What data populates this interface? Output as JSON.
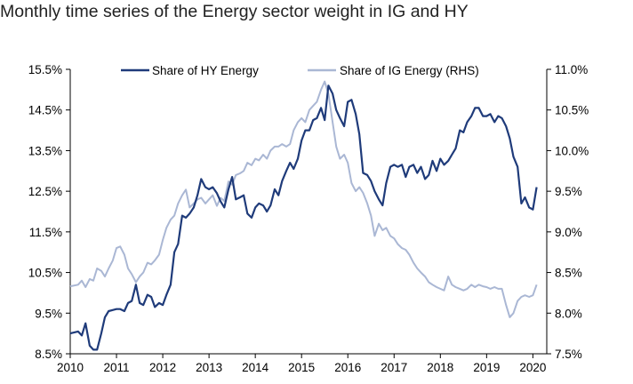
{
  "title": "Monthly time series of the Energy sector weight in IG and HY",
  "chart_data": {
    "type": "line",
    "title": "Monthly time series of the Energy sector weight in IG and HY",
    "x_ticks": [
      "2010",
      "2011",
      "2012",
      "2013",
      "2014",
      "2015",
      "2016",
      "2017",
      "2018",
      "2019",
      "2020"
    ],
    "xlim": [
      2010.0,
      2020.3
    ],
    "y_left": {
      "lim": [
        8.5,
        15.5
      ],
      "ticks": [
        "8.5%",
        "9.5%",
        "10.5%",
        "11.5%",
        "12.5%",
        "13.5%",
        "14.5%",
        "15.5%"
      ]
    },
    "y_right": {
      "lim": [
        7.5,
        11.0
      ],
      "ticks": [
        "7.5%",
        "8.0%",
        "8.5%",
        "9.0%",
        "9.5%",
        "10.0%",
        "10.5%",
        "11.0%"
      ]
    },
    "legend_position": "top",
    "grid": false,
    "series": [
      {
        "name": "Share of HY Energy",
        "axis": "left",
        "color": "#1f3b7a",
        "points": [
          [
            2010.0,
            9.0
          ],
          [
            2010.17,
            9.05
          ],
          [
            2010.25,
            8.95
          ],
          [
            2010.33,
            9.25
          ],
          [
            2010.42,
            8.7
          ],
          [
            2010.5,
            8.6
          ],
          [
            2010.58,
            8.6
          ],
          [
            2010.67,
            9.0
          ],
          [
            2010.75,
            9.4
          ],
          [
            2010.83,
            9.55
          ],
          [
            2011.0,
            9.6
          ],
          [
            2011.08,
            9.6
          ],
          [
            2011.17,
            9.55
          ],
          [
            2011.25,
            9.75
          ],
          [
            2011.33,
            9.8
          ],
          [
            2011.42,
            10.2
          ],
          [
            2011.5,
            9.75
          ],
          [
            2011.58,
            9.7
          ],
          [
            2011.67,
            9.95
          ],
          [
            2011.75,
            9.9
          ],
          [
            2011.83,
            9.65
          ],
          [
            2011.92,
            9.75
          ],
          [
            2012.0,
            9.7
          ],
          [
            2012.08,
            9.95
          ],
          [
            2012.17,
            10.2
          ],
          [
            2012.25,
            11.0
          ],
          [
            2012.33,
            11.2
          ],
          [
            2012.42,
            11.9
          ],
          [
            2012.5,
            11.85
          ],
          [
            2012.58,
            11.95
          ],
          [
            2012.67,
            12.1
          ],
          [
            2012.75,
            12.4
          ],
          [
            2012.83,
            12.8
          ],
          [
            2012.92,
            12.6
          ],
          [
            2013.0,
            12.55
          ],
          [
            2013.08,
            12.6
          ],
          [
            2013.17,
            12.45
          ],
          [
            2013.25,
            12.25
          ],
          [
            2013.33,
            12.1
          ],
          [
            2013.42,
            12.55
          ],
          [
            2013.5,
            12.85
          ],
          [
            2013.58,
            12.3
          ],
          [
            2013.67,
            12.35
          ],
          [
            2013.75,
            12.4
          ],
          [
            2013.83,
            11.95
          ],
          [
            2013.92,
            11.85
          ],
          [
            2014.0,
            12.1
          ],
          [
            2014.08,
            12.2
          ],
          [
            2014.17,
            12.15
          ],
          [
            2014.25,
            12.0
          ],
          [
            2014.33,
            12.15
          ],
          [
            2014.42,
            12.55
          ],
          [
            2014.5,
            12.4
          ],
          [
            2014.58,
            12.75
          ],
          [
            2014.67,
            13.0
          ],
          [
            2014.75,
            13.2
          ],
          [
            2014.83,
            13.05
          ],
          [
            2014.92,
            13.3
          ],
          [
            2015.0,
            13.75
          ],
          [
            2015.08,
            14.0
          ],
          [
            2015.17,
            14.0
          ],
          [
            2015.25,
            14.25
          ],
          [
            2015.33,
            14.3
          ],
          [
            2015.42,
            14.55
          ],
          [
            2015.5,
            14.25
          ],
          [
            2015.58,
            15.1
          ],
          [
            2015.67,
            14.9
          ],
          [
            2015.75,
            14.5
          ],
          [
            2015.83,
            14.3
          ],
          [
            2015.92,
            14.1
          ],
          [
            2016.0,
            14.7
          ],
          [
            2016.08,
            14.75
          ],
          [
            2016.17,
            14.4
          ],
          [
            2016.25,
            13.9
          ],
          [
            2016.33,
            12.95
          ],
          [
            2016.42,
            12.9
          ],
          [
            2016.5,
            12.75
          ],
          [
            2016.58,
            12.5
          ],
          [
            2016.67,
            12.3
          ],
          [
            2016.75,
            12.15
          ],
          [
            2016.83,
            12.7
          ],
          [
            2016.92,
            13.1
          ],
          [
            2017.0,
            13.15
          ],
          [
            2017.08,
            13.1
          ],
          [
            2017.17,
            13.15
          ],
          [
            2017.25,
            12.85
          ],
          [
            2017.33,
            13.1
          ],
          [
            2017.42,
            13.15
          ],
          [
            2017.5,
            12.95
          ],
          [
            2017.58,
            13.1
          ],
          [
            2017.67,
            12.8
          ],
          [
            2017.75,
            12.9
          ],
          [
            2017.83,
            13.25
          ],
          [
            2017.92,
            13.0
          ],
          [
            2018.0,
            13.3
          ],
          [
            2018.08,
            13.15
          ],
          [
            2018.17,
            13.25
          ],
          [
            2018.25,
            13.4
          ],
          [
            2018.33,
            13.55
          ],
          [
            2018.42,
            14.0
          ],
          [
            2018.5,
            13.95
          ],
          [
            2018.58,
            14.2
          ],
          [
            2018.67,
            14.35
          ],
          [
            2018.75,
            14.55
          ],
          [
            2018.83,
            14.55
          ],
          [
            2018.92,
            14.35
          ],
          [
            2019.0,
            14.35
          ],
          [
            2019.08,
            14.4
          ],
          [
            2019.17,
            14.2
          ],
          [
            2019.25,
            14.35
          ],
          [
            2019.33,
            14.3
          ],
          [
            2019.42,
            14.1
          ],
          [
            2019.5,
            13.8
          ],
          [
            2019.58,
            13.35
          ],
          [
            2019.67,
            13.1
          ],
          [
            2019.75,
            12.2
          ],
          [
            2019.83,
            12.35
          ],
          [
            2019.92,
            12.1
          ],
          [
            2020.0,
            12.05
          ],
          [
            2020.08,
            12.6
          ]
        ]
      },
      {
        "name": "Share of IG Energy (RHS)",
        "axis": "right",
        "color": "#aab7d4",
        "points": [
          [
            2010.0,
            8.33
          ],
          [
            2010.17,
            8.35
          ],
          [
            2010.25,
            8.4
          ],
          [
            2010.33,
            8.32
          ],
          [
            2010.42,
            8.42
          ],
          [
            2010.5,
            8.4
          ],
          [
            2010.58,
            8.55
          ],
          [
            2010.67,
            8.52
          ],
          [
            2010.75,
            8.45
          ],
          [
            2010.83,
            8.55
          ],
          [
            2010.92,
            8.65
          ],
          [
            2011.0,
            8.8
          ],
          [
            2011.08,
            8.82
          ],
          [
            2011.17,
            8.72
          ],
          [
            2011.25,
            8.55
          ],
          [
            2011.33,
            8.48
          ],
          [
            2011.42,
            8.38
          ],
          [
            2011.5,
            8.45
          ],
          [
            2011.58,
            8.5
          ],
          [
            2011.67,
            8.62
          ],
          [
            2011.75,
            8.6
          ],
          [
            2011.83,
            8.65
          ],
          [
            2011.92,
            8.72
          ],
          [
            2012.0,
            8.9
          ],
          [
            2012.08,
            9.05
          ],
          [
            2012.17,
            9.15
          ],
          [
            2012.25,
            9.2
          ],
          [
            2012.33,
            9.35
          ],
          [
            2012.42,
            9.45
          ],
          [
            2012.5,
            9.52
          ],
          [
            2012.58,
            9.3
          ],
          [
            2012.67,
            9.35
          ],
          [
            2012.75,
            9.4
          ],
          [
            2012.83,
            9.42
          ],
          [
            2012.92,
            9.35
          ],
          [
            2013.0,
            9.4
          ],
          [
            2013.08,
            9.45
          ],
          [
            2013.17,
            9.32
          ],
          [
            2013.25,
            9.42
          ],
          [
            2013.33,
            9.38
          ],
          [
            2013.42,
            9.62
          ],
          [
            2013.5,
            9.58
          ],
          [
            2013.58,
            9.7
          ],
          [
            2013.67,
            9.72
          ],
          [
            2013.75,
            9.75
          ],
          [
            2013.83,
            9.85
          ],
          [
            2013.92,
            9.82
          ],
          [
            2014.0,
            9.9
          ],
          [
            2014.08,
            9.88
          ],
          [
            2014.17,
            9.95
          ],
          [
            2014.25,
            9.9
          ],
          [
            2014.33,
            10.0
          ],
          [
            2014.42,
            10.05
          ],
          [
            2014.5,
            10.05
          ],
          [
            2014.58,
            10.08
          ],
          [
            2014.67,
            10.05
          ],
          [
            2014.75,
            10.08
          ],
          [
            2014.83,
            10.25
          ],
          [
            2014.92,
            10.35
          ],
          [
            2015.0,
            10.4
          ],
          [
            2015.08,
            10.35
          ],
          [
            2015.17,
            10.5
          ],
          [
            2015.25,
            10.55
          ],
          [
            2015.33,
            10.6
          ],
          [
            2015.42,
            10.75
          ],
          [
            2015.5,
            10.85
          ],
          [
            2015.58,
            10.7
          ],
          [
            2015.67,
            10.35
          ],
          [
            2015.75,
            10.05
          ],
          [
            2015.83,
            9.9
          ],
          [
            2015.92,
            9.95
          ],
          [
            2016.0,
            9.85
          ],
          [
            2016.08,
            9.6
          ],
          [
            2016.17,
            9.5
          ],
          [
            2016.25,
            9.55
          ],
          [
            2016.33,
            9.48
          ],
          [
            2016.42,
            9.35
          ],
          [
            2016.5,
            9.2
          ],
          [
            2016.58,
            8.95
          ],
          [
            2016.67,
            9.1
          ],
          [
            2016.75,
            9.02
          ],
          [
            2016.83,
            9.05
          ],
          [
            2016.92,
            8.95
          ],
          [
            2017.0,
            8.92
          ],
          [
            2017.08,
            8.85
          ],
          [
            2017.17,
            8.8
          ],
          [
            2017.25,
            8.78
          ],
          [
            2017.33,
            8.72
          ],
          [
            2017.42,
            8.62
          ],
          [
            2017.5,
            8.55
          ],
          [
            2017.58,
            8.5
          ],
          [
            2017.67,
            8.45
          ],
          [
            2017.75,
            8.38
          ],
          [
            2017.83,
            8.35
          ],
          [
            2017.92,
            8.32
          ],
          [
            2018.0,
            8.3
          ],
          [
            2018.08,
            8.28
          ],
          [
            2018.17,
            8.45
          ],
          [
            2018.25,
            8.35
          ],
          [
            2018.33,
            8.32
          ],
          [
            2018.42,
            8.3
          ],
          [
            2018.5,
            8.28
          ],
          [
            2018.58,
            8.3
          ],
          [
            2018.67,
            8.35
          ],
          [
            2018.75,
            8.32
          ],
          [
            2018.83,
            8.35
          ],
          [
            2018.92,
            8.33
          ],
          [
            2019.0,
            8.32
          ],
          [
            2019.08,
            8.3
          ],
          [
            2019.17,
            8.32
          ],
          [
            2019.25,
            8.3
          ],
          [
            2019.33,
            8.3
          ],
          [
            2019.42,
            8.1
          ],
          [
            2019.5,
            7.95
          ],
          [
            2019.58,
            8.0
          ],
          [
            2019.67,
            8.15
          ],
          [
            2019.75,
            8.2
          ],
          [
            2019.83,
            8.22
          ],
          [
            2019.92,
            8.2
          ],
          [
            2020.0,
            8.22
          ],
          [
            2020.08,
            8.35
          ]
        ]
      }
    ]
  }
}
